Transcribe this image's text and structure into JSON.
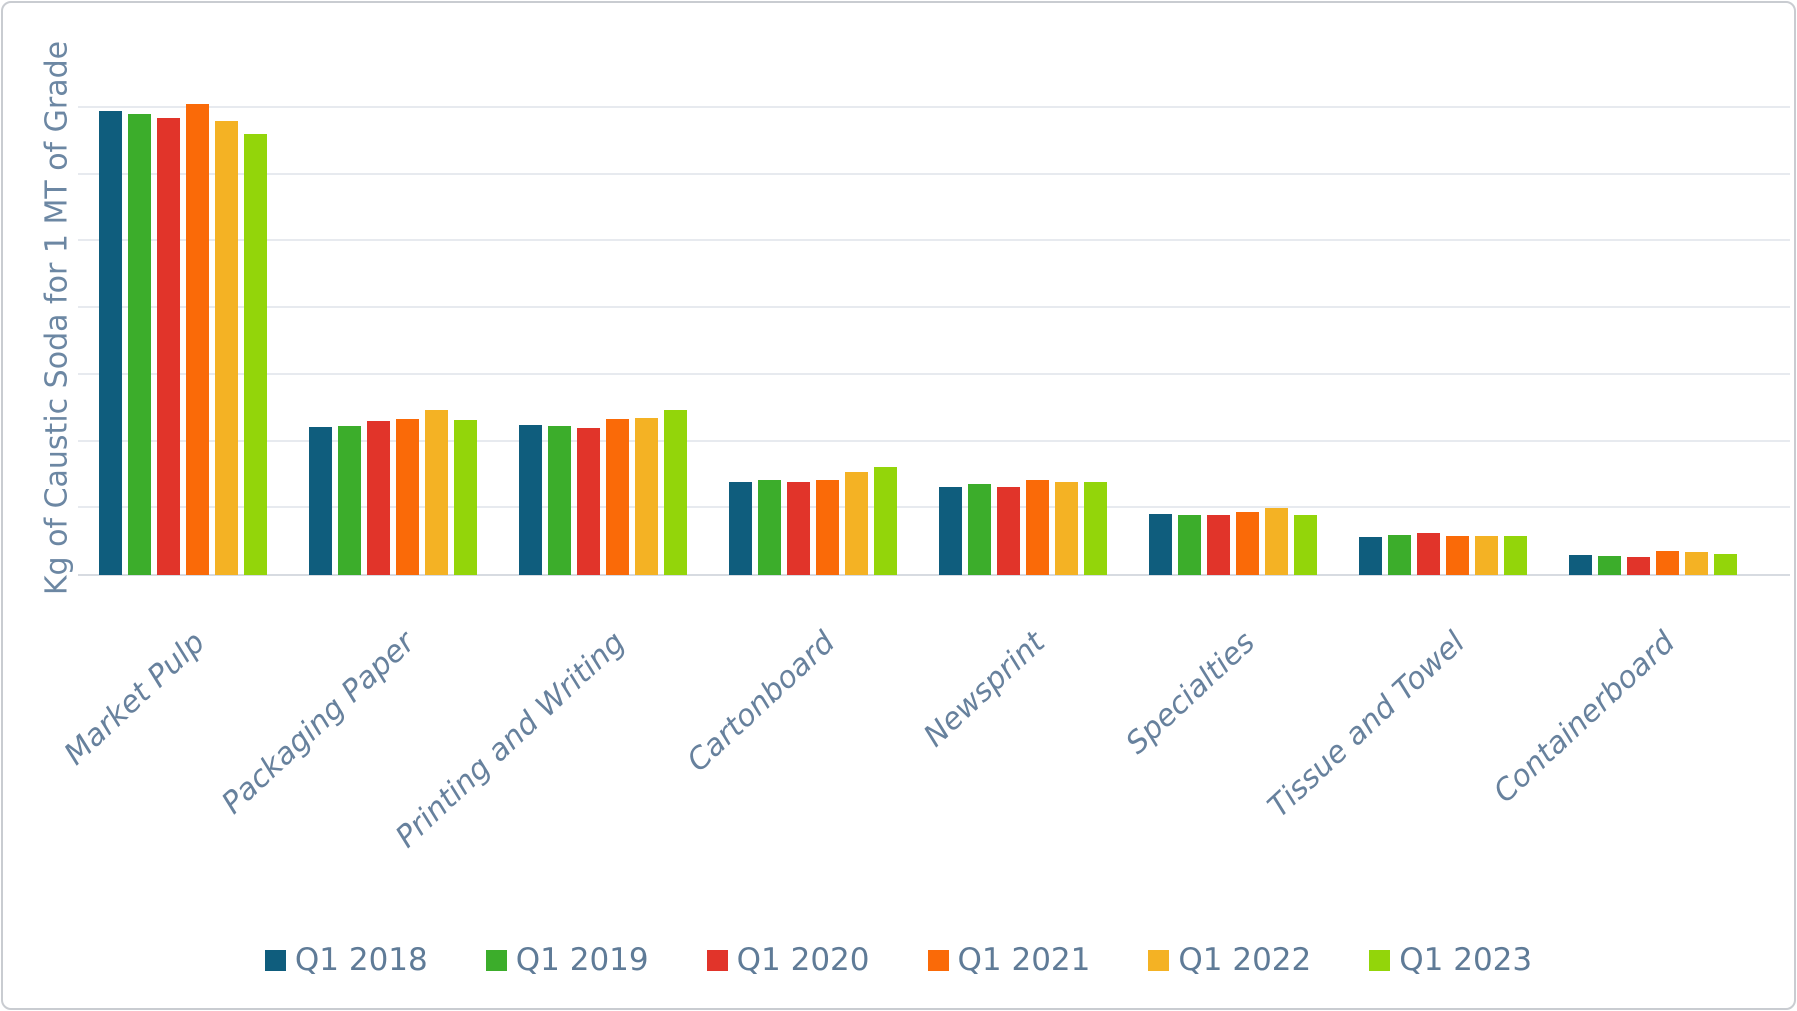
{
  "chart_data": {
    "type": "bar",
    "title": "",
    "xlabel": "",
    "ylabel": "Kg of Caustic Soda for 1 MT of Grade",
    "categories": [
      "Market Pulp",
      "Packaging Paper",
      "Printing and Writing",
      "Cartonboard",
      "Newsprint",
      "Specialties",
      "Tissue and Towel",
      "Containerboard"
    ],
    "series": [
      {
        "name": "Q1 2018",
        "color": "#0f5d7d",
        "values": [
          69.5,
          22.2,
          22.4,
          14.0,
          13.2,
          9.2,
          5.7,
          3.0
        ]
      },
      {
        "name": "Q1 2019",
        "color": "#3cad2b",
        "values": [
          69.0,
          22.3,
          22.3,
          14.3,
          13.6,
          9.0,
          6.0,
          2.9
        ]
      },
      {
        "name": "Q1 2020",
        "color": "#e1342a",
        "values": [
          68.5,
          23.0,
          22.0,
          14.0,
          13.2,
          9.0,
          6.3,
          2.7
        ]
      },
      {
        "name": "Q1 2021",
        "color": "#fa6a08",
        "values": [
          70.5,
          23.4,
          23.3,
          14.3,
          14.2,
          9.5,
          5.9,
          3.6
        ]
      },
      {
        "name": "Q1 2022",
        "color": "#f4b224",
        "values": [
          68.0,
          24.7,
          23.5,
          15.5,
          14.0,
          10.0,
          5.9,
          3.5
        ]
      },
      {
        "name": "Q1 2023",
        "color": "#93d50a",
        "values": [
          66.0,
          23.2,
          24.7,
          16.2,
          14.0,
          9.0,
          5.9,
          3.2
        ]
      }
    ],
    "ylim": [
      0,
      80
    ],
    "gridline_interval": 10,
    "y_tick_labels_visible": false,
    "grid": true,
    "legend_position": "bottom",
    "axis_text_color": "#67819d",
    "gridline_color": "#e7eaef"
  }
}
